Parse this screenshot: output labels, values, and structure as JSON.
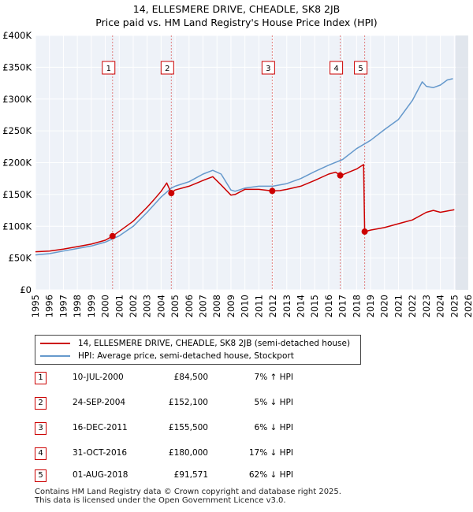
{
  "chart_data": {
    "type": "line",
    "title": "14, ELLESMERE DRIVE, CHEADLE, SK8 2JB",
    "subtitle": "Price paid vs. HM Land Registry's House Price Index (HPI)",
    "xlim": [
      1995,
      2026
    ],
    "ylim": [
      0,
      400000
    ],
    "x_ticks": [
      "1995",
      "1996",
      "1997",
      "1998",
      "1999",
      "2000",
      "2001",
      "2002",
      "2003",
      "2004",
      "2005",
      "2006",
      "2007",
      "2008",
      "2009",
      "2010",
      "2011",
      "2012",
      "2013",
      "2014",
      "2015",
      "2016",
      "2017",
      "2018",
      "2019",
      "2020",
      "2021",
      "2022",
      "2023",
      "2024",
      "2025",
      "2026"
    ],
    "y_ticks": [
      {
        "value": 0,
        "label": "£0"
      },
      {
        "value": 50000,
        "label": "£50K"
      },
      {
        "value": 100000,
        "label": "£100K"
      },
      {
        "value": 150000,
        "label": "£150K"
      },
      {
        "value": 200000,
        "label": "£200K"
      },
      {
        "value": 250000,
        "label": "£250K"
      },
      {
        "value": 300000,
        "label": "£300K"
      },
      {
        "value": 350000,
        "label": "£350K"
      },
      {
        "value": 400000,
        "label": "£400K"
      }
    ],
    "grid": true,
    "future_shade_from": 2025.1,
    "series": [
      {
        "name": "14, ELLESMERE DRIVE, CHEADLE, SK8 2JB (semi-detached house)",
        "color": "#cc0000",
        "x": [
          1995.0,
          1996.0,
          1997.0,
          1998.0,
          1999.0,
          2000.0,
          2000.52,
          2001.0,
          2002.0,
          2003.0,
          2003.5,
          2004.0,
          2004.4,
          2004.73,
          2005.0,
          2006.0,
          2007.0,
          2007.7,
          2008.3,
          2009.0,
          2009.3,
          2010.0,
          2011.0,
          2011.96,
          2012.5,
          2013.0,
          2014.0,
          2015.0,
          2016.0,
          2016.5,
          2016.83,
          2017.0,
          2018.0,
          2018.5,
          2018.58,
          2019.0,
          2020.0,
          2021.0,
          2022.0,
          2023.0,
          2023.5,
          2024.0,
          2024.5,
          2025.0
        ],
        "y": [
          60000,
          61000,
          64000,
          68000,
          72000,
          78000,
          84500,
          92000,
          108000,
          130000,
          142000,
          155000,
          168000,
          152100,
          157000,
          163000,
          172000,
          178000,
          165000,
          149000,
          150000,
          158000,
          158000,
          155500,
          156000,
          158000,
          163000,
          172000,
          182000,
          185000,
          180000,
          181000,
          190000,
          197000,
          91571,
          94000,
          98000,
          104000,
          110000,
          122000,
          125000,
          122000,
          124000,
          126000
        ]
      },
      {
        "name": "HPI: Average price, semi-detached house, Stockport",
        "color": "#6699cc",
        "x": [
          1995.0,
          1996.0,
          1997.0,
          1998.0,
          1999.0,
          2000.0,
          2001.0,
          2002.0,
          2003.0,
          2004.0,
          2004.73,
          2005.0,
          2006.0,
          2007.0,
          2007.7,
          2008.3,
          2009.0,
          2009.3,
          2010.0,
          2011.0,
          2012.0,
          2013.0,
          2014.0,
          2015.0,
          2016.0,
          2017.0,
          2018.0,
          2019.0,
          2020.0,
          2021.0,
          2022.0,
          2022.7,
          2023.0,
          2023.5,
          2024.0,
          2024.5,
          2024.9
        ],
        "y": [
          55000,
          57000,
          61000,
          65000,
          69000,
          75000,
          85000,
          100000,
          122000,
          146000,
          160000,
          163000,
          170000,
          182000,
          188000,
          182000,
          157000,
          155000,
          160000,
          163000,
          163000,
          167000,
          175000,
          186000,
          196000,
          205000,
          222000,
          235000,
          252000,
          268000,
          298000,
          327000,
          320000,
          318000,
          322000,
          330000,
          332000
        ]
      }
    ],
    "markers": [
      {
        "label": "1",
        "x": 2000.52,
        "y": 84500
      },
      {
        "label": "2",
        "x": 2004.73,
        "y": 152100
      },
      {
        "label": "3",
        "x": 2011.96,
        "y": 155500
      },
      {
        "label": "4",
        "x": 2016.83,
        "y": 180000
      },
      {
        "label": "5",
        "x": 2018.58,
        "y": 91571
      }
    ]
  },
  "legend": [
    {
      "label": "14, ELLESMERE DRIVE, CHEADLE, SK8 2JB (semi-detached house)",
      "color": "#cc0000"
    },
    {
      "label": "HPI: Average price, semi-detached house, Stockport",
      "color": "#6699cc"
    }
  ],
  "sales": [
    {
      "num": "1",
      "date": "10-JUL-2000",
      "price": "£84,500",
      "hpi": "7% ↑ HPI"
    },
    {
      "num": "2",
      "date": "24-SEP-2004",
      "price": "£152,100",
      "hpi": "5% ↓ HPI"
    },
    {
      "num": "3",
      "date": "16-DEC-2011",
      "price": "£155,500",
      "hpi": "6% ↓ HPI"
    },
    {
      "num": "4",
      "date": "31-OCT-2016",
      "price": "£180,000",
      "hpi": "17% ↓ HPI"
    },
    {
      "num": "5",
      "date": "01-AUG-2018",
      "price": "£91,571",
      "hpi": "62% ↓ HPI"
    }
  ],
  "footer": {
    "line1": "Contains HM Land Registry data © Crown copyright and database right 2025.",
    "line2": "This data is licensed under the Open Government Licence v3.0."
  }
}
